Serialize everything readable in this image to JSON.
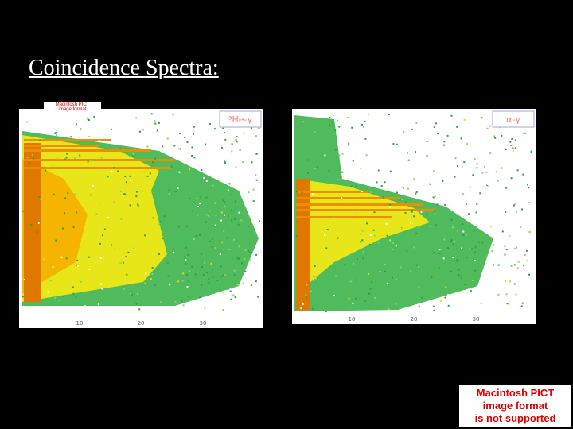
{
  "slide": {
    "title": "Coincidence Spectra:",
    "panels": [
      {
        "label": "³He-γ",
        "x_ticks": [
          "10",
          "20",
          "30"
        ]
      },
      {
        "label": "α-γ",
        "x_ticks": [
          "10",
          "20",
          "30"
        ]
      }
    ],
    "small_placeholder": [
      "Macintosh PICT",
      "image format"
    ],
    "placeholder": [
      "Macintosh PICT",
      "image format",
      "is not supported"
    ]
  }
}
